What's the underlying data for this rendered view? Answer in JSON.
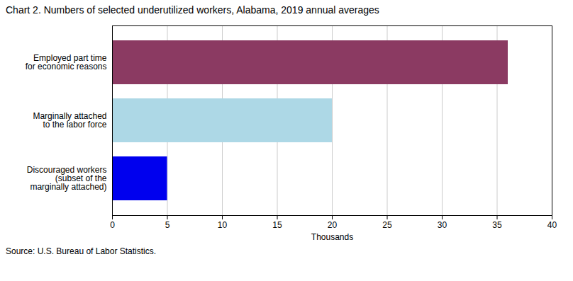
{
  "chart_data": {
    "type": "bar",
    "orientation": "horizontal",
    "title": "Chart 2. Numbers of selected underutilized workers, Alabama, 2019 annual averages",
    "categories": [
      "Discouraged workers\n(subset of the\nmarginally attached)",
      "Marginally attached\nto the labor force",
      "Employed part time\nfor economic reasons"
    ],
    "values": [
      5,
      20,
      36
    ],
    "colors": [
      "#0000EE",
      "#ADD8E6",
      "#8B3A62"
    ],
    "xlabel": "Thousands",
    "xlim": [
      0,
      40
    ],
    "xticks": [
      0,
      5,
      10,
      15,
      20,
      25,
      30,
      35,
      40
    ],
    "grid": true,
    "caption": "Source: U.S. Bureau of Labor Statistics."
  }
}
